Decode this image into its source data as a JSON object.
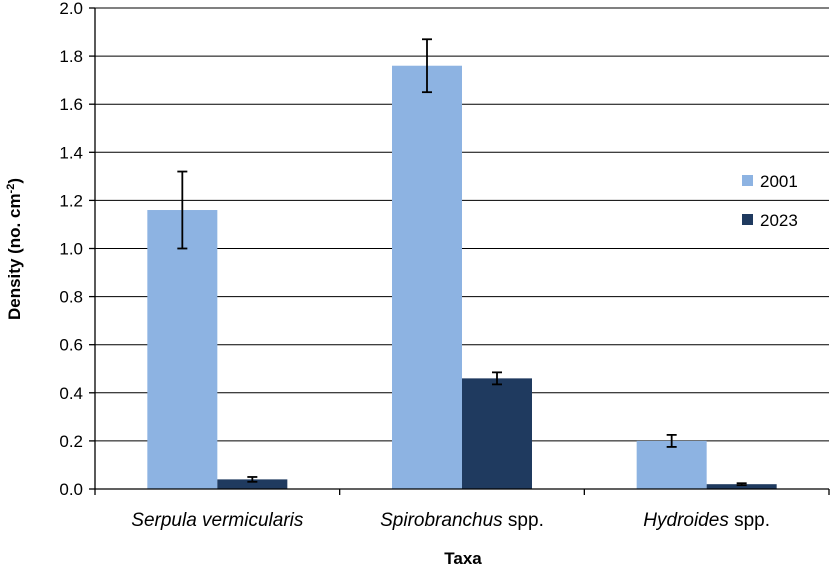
{
  "chart_data": {
    "type": "bar",
    "categories": [
      {
        "italic": "Serpula vermicularis",
        "plain": ""
      },
      {
        "italic": "Spirobranchus",
        "plain": " spp."
      },
      {
        "italic": "Hydroides",
        "plain": " spp."
      }
    ],
    "series": [
      {
        "name": "2001",
        "color": "#8DB3E2",
        "values": [
          1.16,
          1.76,
          0.2
        ],
        "errors": [
          0.16,
          0.11,
          0.025
        ]
      },
      {
        "name": "2023",
        "color": "#1F3A5F",
        "values": [
          0.04,
          0.46,
          0.02
        ],
        "errors": [
          0.01,
          0.025,
          0.004
        ]
      }
    ],
    "xlabel": "Taxa",
    "ylabel": {
      "main": "Density (no. cm",
      "sup": "-2",
      "end": ")"
    },
    "ylim": [
      0,
      2.0
    ],
    "yticks": [
      "0.0",
      "0.2",
      "0.4",
      "0.6",
      "0.8",
      "1.0",
      "1.2",
      "1.4",
      "1.6",
      "1.8",
      "2.0"
    ],
    "ytick_values": [
      0,
      0.2,
      0.4,
      0.6,
      0.8,
      1.0,
      1.2,
      1.4,
      1.6,
      1.8,
      2.0
    ],
    "grid": true,
    "legend_position": "right"
  }
}
